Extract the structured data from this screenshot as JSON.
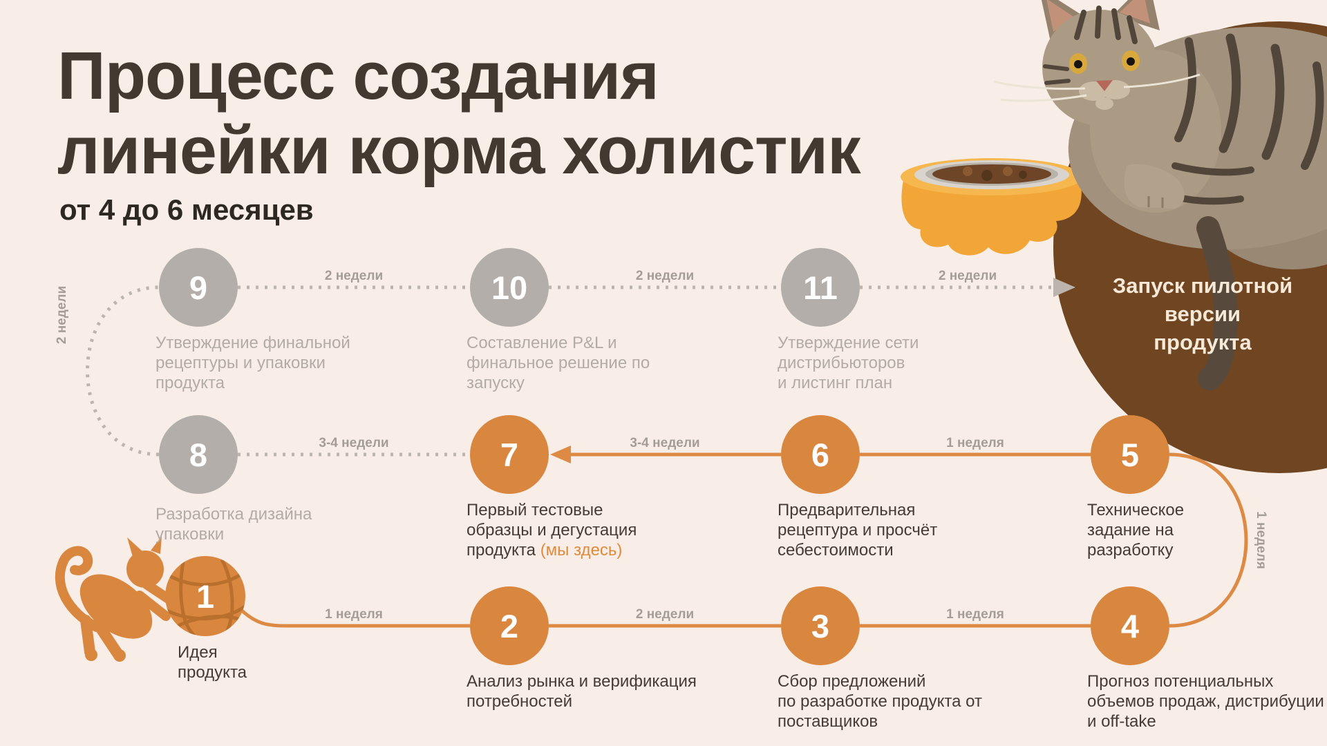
{
  "header": {
    "title_line1": "Процесс создания",
    "title_line2": "линейки корма холистик",
    "subtitle": "от 4 до 6 месяцев"
  },
  "launch": {
    "line1": "Запуск пилотной версии",
    "line2": "продукта"
  },
  "steps": [
    {
      "id": 1,
      "number": "1",
      "status": "done",
      "lines": [
        "Идея",
        "продукта"
      ]
    },
    {
      "id": 2,
      "number": "2",
      "status": "done",
      "lines": [
        "Анализ рынка и верификация",
        "потребностей"
      ]
    },
    {
      "id": 3,
      "number": "3",
      "status": "done",
      "lines": [
        "Сбор предложений",
        "по разработке продукта от",
        "поставщиков"
      ]
    },
    {
      "id": 4,
      "number": "4",
      "status": "done",
      "lines": [
        "Прогноз потенциальных",
        "объемов продаж, дистрибуции",
        "и off-take"
      ]
    },
    {
      "id": 5,
      "number": "5",
      "status": "done",
      "lines": [
        "Техническое",
        "задание на",
        "разработку"
      ]
    },
    {
      "id": 6,
      "number": "6",
      "status": "done",
      "lines": [
        "Предварительная",
        "рецептура и просчёт",
        "себестоимости"
      ]
    },
    {
      "id": 7,
      "number": "7",
      "status": "current",
      "lines": [
        "Первый тестовые",
        "образцы и дегустация"
      ],
      "last_line_prefix": "продукта ",
      "here_marker": "(мы здесь)"
    },
    {
      "id": 8,
      "number": "8",
      "status": "upcoming",
      "lines": [
        "Разработка дизайна",
        "упаковки"
      ]
    },
    {
      "id": 9,
      "number": "9",
      "status": "upcoming",
      "lines": [
        "Утверждение финальной",
        "рецептуры и упаковки",
        "продукта"
      ]
    },
    {
      "id": 10,
      "number": "10",
      "status": "upcoming",
      "lines": [
        "Составление P&L и",
        "финальное решение по",
        "запуску"
      ]
    },
    {
      "id": 11,
      "number": "11",
      "status": "upcoming",
      "lines": [
        "Утверждение сети",
        "дистрибьюторов",
        "и листинг план"
      ]
    }
  ],
  "durations": [
    {
      "id": "d1-2",
      "text": "1 неделя"
    },
    {
      "id": "d2-3",
      "text": "2 недели"
    },
    {
      "id": "d3-4",
      "text": "1 неделя"
    },
    {
      "id": "d4-5",
      "text": "1 неделя"
    },
    {
      "id": "d5-6",
      "text": "1 неделя"
    },
    {
      "id": "d6-7",
      "text": "3-4 недели"
    },
    {
      "id": "d7-8",
      "text": "3-4 недели"
    },
    {
      "id": "d8-9",
      "text": "2 недели"
    },
    {
      "id": "d9-10",
      "text": "2 недели"
    },
    {
      "id": "d10-11",
      "text": "2 недели"
    },
    {
      "id": "d11-launch",
      "text": "2 недели"
    }
  ],
  "colors": {
    "background": "#f8ede7",
    "title": "#443931",
    "orange": "#d9863f",
    "orange_line": "#dd8a44",
    "gray_circle": "#b3aeaa",
    "gray_text": "#b3aba5",
    "dark_text": "#443c35",
    "duration_text": "#a49d96",
    "dotted_line": "#bcb5ae",
    "launch_circle": "#6f4522",
    "launch_text": "#f6e9d8",
    "here_marker": "#df8b3c"
  }
}
